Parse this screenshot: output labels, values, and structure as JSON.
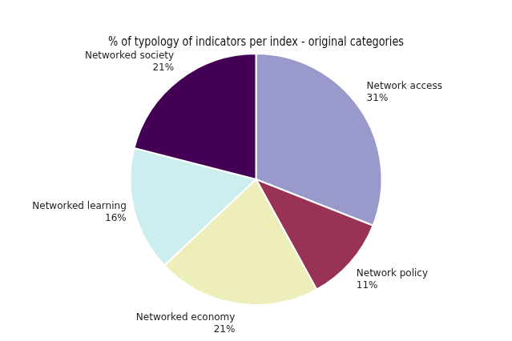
{
  "chart_data": {
    "type": "pie",
    "title": "% of typology of indicators per index - original categories",
    "categories": [
      "Network access",
      "Network policy",
      "Networked economy",
      "Networked learning",
      "Networked society"
    ],
    "values": [
      31,
      11,
      21,
      16,
      21
    ],
    "value_labels": [
      "31%",
      "11%",
      "21%",
      "16%",
      "21%"
    ],
    "colors": [
      "#9999CC",
      "#993355",
      "#EEEEBB",
      "#CCEEEE",
      "#440055"
    ],
    "data_labels": true
  }
}
